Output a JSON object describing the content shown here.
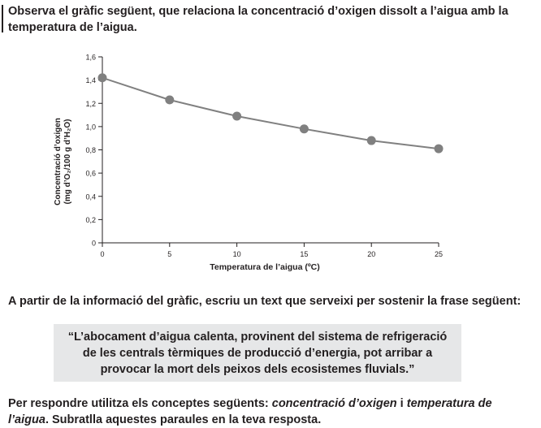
{
  "intro": "Observa el gràfic següent, que relaciona la concentració d’oxigen dissolt a l’aigua amb la temperatura de l’aigua.",
  "chart_data": {
    "type": "line",
    "x": [
      0,
      5,
      10,
      15,
      20,
      25
    ],
    "series": [
      {
        "values": [
          1.42,
          1.23,
          1.09,
          0.98,
          0.88,
          0.81
        ]
      }
    ],
    "xticks": [
      "0",
      "5",
      "10",
      "15",
      "20",
      "25"
    ],
    "yticks": [
      "0",
      "0,2",
      "0,4",
      "0,6",
      "0,8",
      "1,0",
      "1,2",
      "1,4",
      "1,6"
    ],
    "xlim": [
      0,
      25
    ],
    "ylim": [
      0,
      1.6
    ],
    "xlabel": "Temperatura de l’aigua (ºC)",
    "ylabel_line1": "Concentració d’oxigen",
    "ylabel_line2": "(mg d’O₂/100 g d’H₂O)",
    "line_color": "#808080",
    "point_color": "#808080",
    "grid": false
  },
  "question": "A partir de la informació del gràfic, escriu un text que serveixi per sostenir la frase següent:",
  "quote": "“L’abocament d’aigua calenta, provinent del sistema de refrigeració de les centrals tèrmiques de producció d’energia, pot arribar a provocar la mort dels peixos dels ecosistemes fluvials.”",
  "instructions": {
    "before": "Per respondre utilitza els conceptes següents: ",
    "term1": "concentració d’oxigen",
    "middle": " i ",
    "term2": "temperatura de l’aigua",
    "after": ". Subratlla aquestes paraules en la teva resposta."
  }
}
